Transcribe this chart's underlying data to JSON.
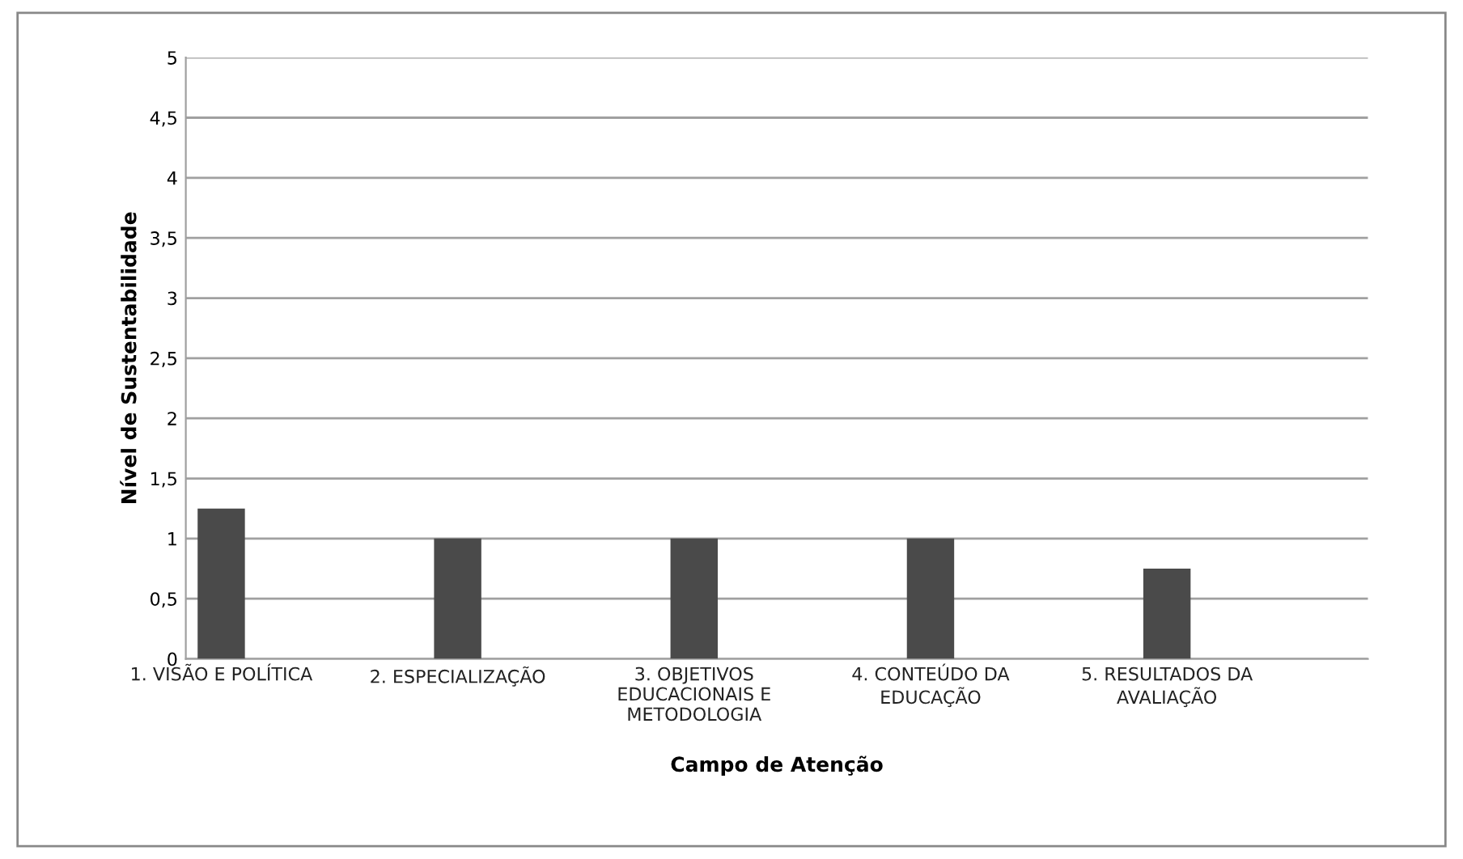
{
  "chart_data": {
    "type": "bar",
    "xlabel": "Campo de Atenção",
    "ylabel": "Nível de Sustentabilidade",
    "categories": [
      "1. VISÃO E POLÍTICA",
      "2. ESPECIALIZAÇÃO",
      "3. OBJETIVOS\nEDUCACIONAIS E\nMETODOLOGIA",
      "4. CONTEÚDO DA\nEDUCAÇÃO",
      "5. RESULTADOS DA\nAVALIAÇÃO"
    ],
    "values": [
      1.25,
      1,
      1,
      1,
      0.75
    ],
    "color": "#4a4a4a",
    "ylim": [
      0,
      5
    ],
    "yticks": [
      0,
      {
        "value": 0.5,
        "label": "0,5"
      },
      1,
      {
        "value": 1.5,
        "label": "1,5"
      },
      2,
      {
        "value": 2.5,
        "label": "2,5"
      },
      3,
      {
        "value": 3.5,
        "label": "3,5"
      },
      4,
      {
        "value": 4.5,
        "label": "4,5"
      },
      5
    ],
    "grid": "y",
    "legend": false
  }
}
